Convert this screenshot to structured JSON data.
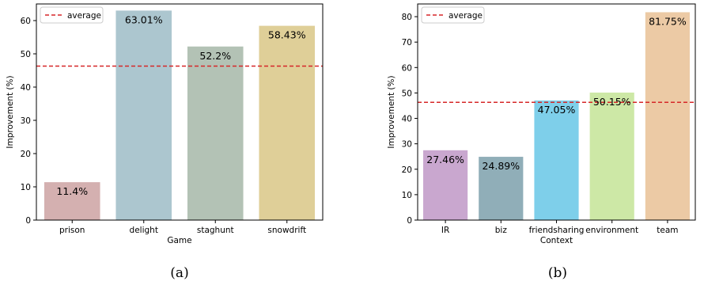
{
  "figure": {
    "colors": {
      "average_line": "#d62728",
      "axis": "#000000",
      "text": "#000000"
    }
  },
  "chart_data": [
    {
      "type": "bar",
      "caption": "(a)",
      "xlabel": "Game",
      "ylabel": "Improvement (%)",
      "categories": [
        "prison",
        "delight",
        "staghunt",
        "snowdrift"
      ],
      "values": [
        11.4,
        63.01,
        52.2,
        58.43
      ],
      "value_labels": [
        "11.4%",
        "63.01%",
        "52.2%",
        "58.43%"
      ],
      "colors": [
        "#d4b0b0",
        "#acc6cf",
        "#b3c2b5",
        "#dfcf98"
      ],
      "ylim": [
        0,
        65
      ],
      "yticks": [
        0,
        10,
        20,
        30,
        40,
        50,
        60
      ],
      "average": 46.3,
      "legend": {
        "label": "average",
        "position": "top-left"
      },
      "grid": false
    },
    {
      "type": "bar",
      "caption": "(b)",
      "xlabel": "Context",
      "ylabel": "Improvement (%)",
      "categories": [
        "IR",
        "biz",
        "friendsharing",
        "environment",
        "team"
      ],
      "values": [
        27.46,
        24.89,
        47.05,
        50.15,
        81.75
      ],
      "value_labels": [
        "27.46%",
        "24.89%",
        "47.05%",
        "50.15%",
        "81.75%"
      ],
      "colors": [
        "#c9a7cf",
        "#90aeb8",
        "#7ecfea",
        "#cde8a6",
        "#eccaa5"
      ],
      "ylim": [
        0,
        85
      ],
      "yticks": [
        0,
        10,
        20,
        30,
        40,
        50,
        60,
        70,
        80
      ],
      "average": 46.3,
      "legend": {
        "label": "average",
        "position": "top-left"
      },
      "grid": false
    }
  ]
}
